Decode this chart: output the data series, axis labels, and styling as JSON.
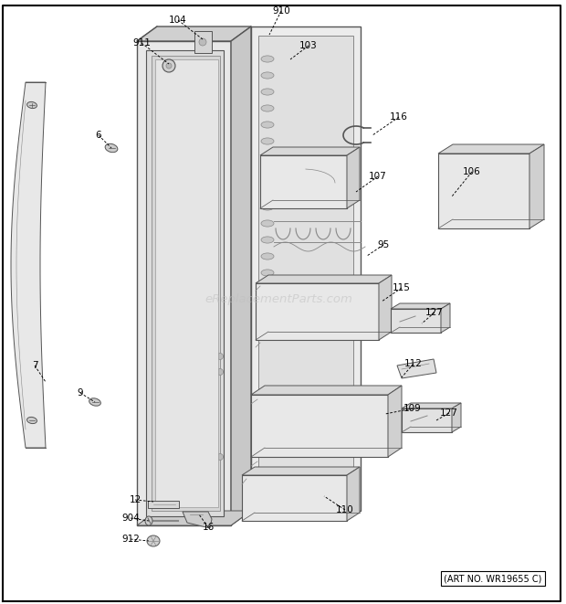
{
  "bg_color": "#ffffff",
  "border_color": "#000000",
  "line_color": "#555555",
  "line_color2": "#888888",
  "watermark": "eReplacementParts.com",
  "art_no": "(ART NO. WR19655 C)",
  "parts_labels": [
    [
      "104",
      195,
      22,
      222,
      43,
      "left"
    ],
    [
      "910",
      308,
      12,
      295,
      38,
      "left"
    ],
    [
      "911",
      155,
      47,
      185,
      70,
      "left"
    ],
    [
      "103",
      338,
      50,
      318,
      65,
      "left"
    ],
    [
      "6",
      108,
      148,
      122,
      162,
      "left"
    ],
    [
      "116",
      437,
      128,
      408,
      148,
      "left"
    ],
    [
      "107",
      414,
      193,
      390,
      210,
      "left"
    ],
    [
      "106",
      517,
      188,
      495,
      215,
      "left"
    ],
    [
      "95",
      420,
      268,
      402,
      280,
      "left"
    ],
    [
      "115",
      440,
      315,
      418,
      330,
      "left"
    ],
    [
      "127",
      476,
      342,
      462,
      354,
      "left"
    ],
    [
      "112",
      453,
      398,
      440,
      413,
      "left"
    ],
    [
      "109",
      452,
      447,
      422,
      453,
      "left"
    ],
    [
      "127",
      492,
      452,
      478,
      460,
      "left"
    ],
    [
      "110",
      378,
      558,
      355,
      543,
      "left"
    ],
    [
      "12",
      148,
      547,
      168,
      549,
      "left"
    ],
    [
      "904",
      143,
      567,
      163,
      570,
      "left"
    ],
    [
      "912",
      143,
      590,
      163,
      592,
      "left"
    ],
    [
      "16",
      228,
      577,
      218,
      563,
      "left"
    ],
    [
      "7",
      38,
      400,
      50,
      418,
      "left"
    ],
    [
      "9",
      88,
      430,
      104,
      440,
      "left"
    ]
  ]
}
